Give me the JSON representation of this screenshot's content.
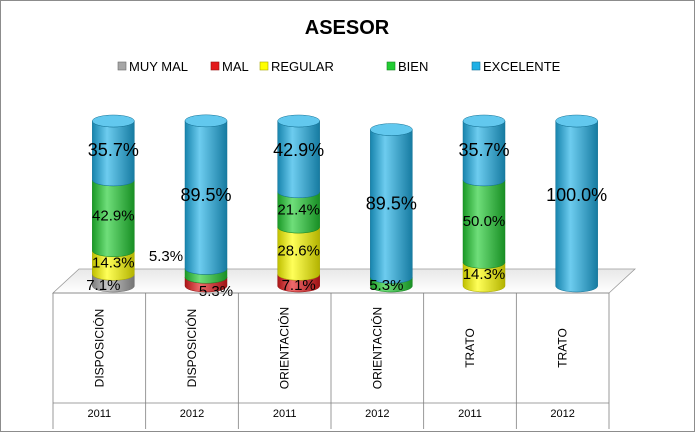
{
  "chart_data": {
    "type": "bar",
    "stacked": true,
    "style": "3d-cylinder",
    "title": "ASESOR",
    "legend_position": "top",
    "categories": [
      {
        "group": "DISPOSICIÓN",
        "year": "2011"
      },
      {
        "group": "DISPOSICIÓN",
        "year": "2012"
      },
      {
        "group": "ORIENTACIÓN",
        "year": "2011"
      },
      {
        "group": "ORIENTACIÓN",
        "year": "2012"
      },
      {
        "group": "TRATO",
        "year": "2011"
      },
      {
        "group": "TRATO",
        "year": "2012"
      }
    ],
    "series": [
      {
        "name": "MUY MAL",
        "color": "#a6a6a6",
        "values": [
          7.1,
          0,
          0,
          0,
          0,
          0
        ],
        "labels": [
          "7.1%",
          "",
          "",
          "",
          "",
          ""
        ]
      },
      {
        "name": "MAL",
        "color": "#e31a1c",
        "values": [
          0,
          5.3,
          7.1,
          0,
          0,
          0
        ],
        "labels": [
          "",
          "5.3%",
          "7.1%",
          "",
          "",
          ""
        ]
      },
      {
        "name": "REGULAR",
        "color": "#ffff00",
        "values": [
          14.3,
          0,
          28.6,
          0,
          14.3,
          0
        ],
        "labels": [
          "14.3%",
          "",
          "28.6%",
          "",
          "14.3%",
          ""
        ]
      },
      {
        "name": "BIEN",
        "color": "#22cc33",
        "values": [
          42.9,
          5.3,
          21.4,
          5.3,
          50.0,
          0
        ],
        "labels": [
          "42.9%",
          "5.3%",
          "21.4%",
          "5.3%",
          "50.0%",
          ""
        ]
      },
      {
        "name": "EXCELENTE",
        "color": "#1fb0e6",
        "values": [
          35.7,
          89.5,
          42.9,
          89.5,
          35.7,
          100.0
        ],
        "labels": [
          "35.7%",
          "89.5%",
          "42.9%",
          "89.5%",
          "35.7%",
          "100.0%"
        ]
      }
    ],
    "ylim": [
      0,
      100
    ],
    "grid": false
  }
}
